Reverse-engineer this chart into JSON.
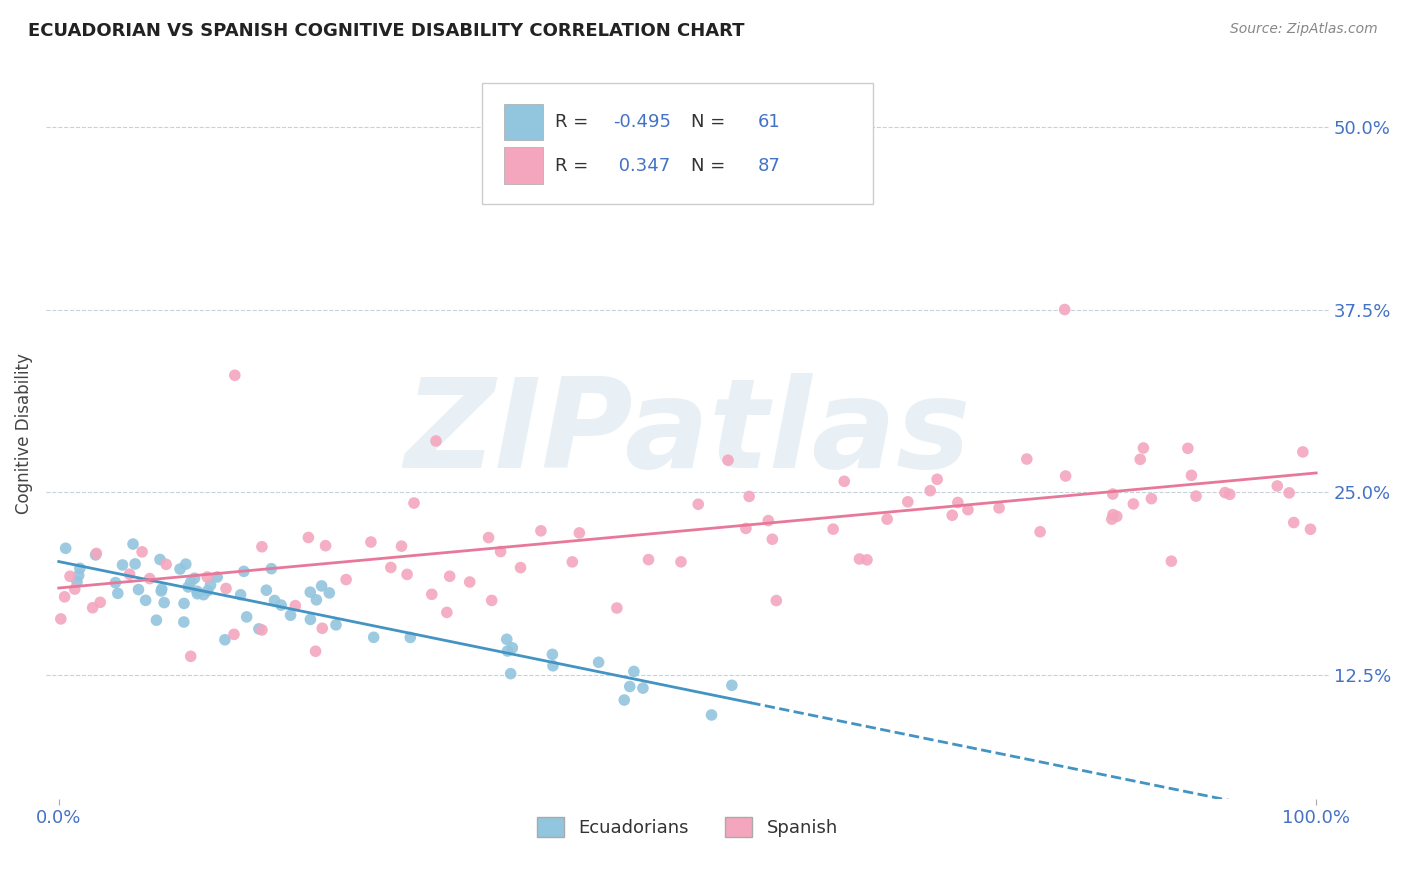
{
  "title": "ECUADORIAN VS SPANISH COGNITIVE DISABILITY CORRELATION CHART",
  "source": "Source: ZipAtlas.com",
  "ylabel": "Cognitive Disability",
  "R_ecuadorian": -0.495,
  "N_ecuadorian": 61,
  "R_spanish": 0.347,
  "N_spanish": 87,
  "color_ecuadorian": "#92c5de",
  "color_spanish": "#f4a6bf",
  "color_ecuadorian_line": "#4393c3",
  "color_spanish_line": "#e8789a",
  "ytick_labels": [
    "12.5%",
    "25.0%",
    "37.5%",
    "50.0%"
  ],
  "ytick_values": [
    0.125,
    0.25,
    0.375,
    0.5
  ],
  "watermark": "ZIPatlas",
  "background_color": "#ffffff",
  "blue_text_color": "#4472c4",
  "grid_color": "#c8d0dc",
  "title_color": "#222222",
  "source_color": "#888888",
  "label_color": "#444444"
}
